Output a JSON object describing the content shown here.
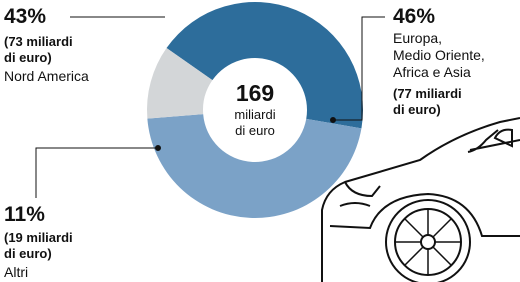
{
  "chart_data": {
    "type": "donut",
    "center_value": "169",
    "center_label": "miliardi\ndi euro",
    "categories": [
      "Nord America",
      "Europa,\nMedio Oriente,\nAfrica e Asia",
      "Altri"
    ],
    "values": [
      43,
      46,
      11
    ],
    "value_labels": [
      "43%",
      "46%",
      "11%"
    ],
    "amount_labels": [
      "(73 miliardi\ndi euro)",
      "(77 miliardi\ndi euro)",
      "(19 miliardi\ndi euro)"
    ],
    "colors": [
      "#2d6d9b",
      "#7ba2c7",
      "#d3d6d8"
    ]
  }
}
